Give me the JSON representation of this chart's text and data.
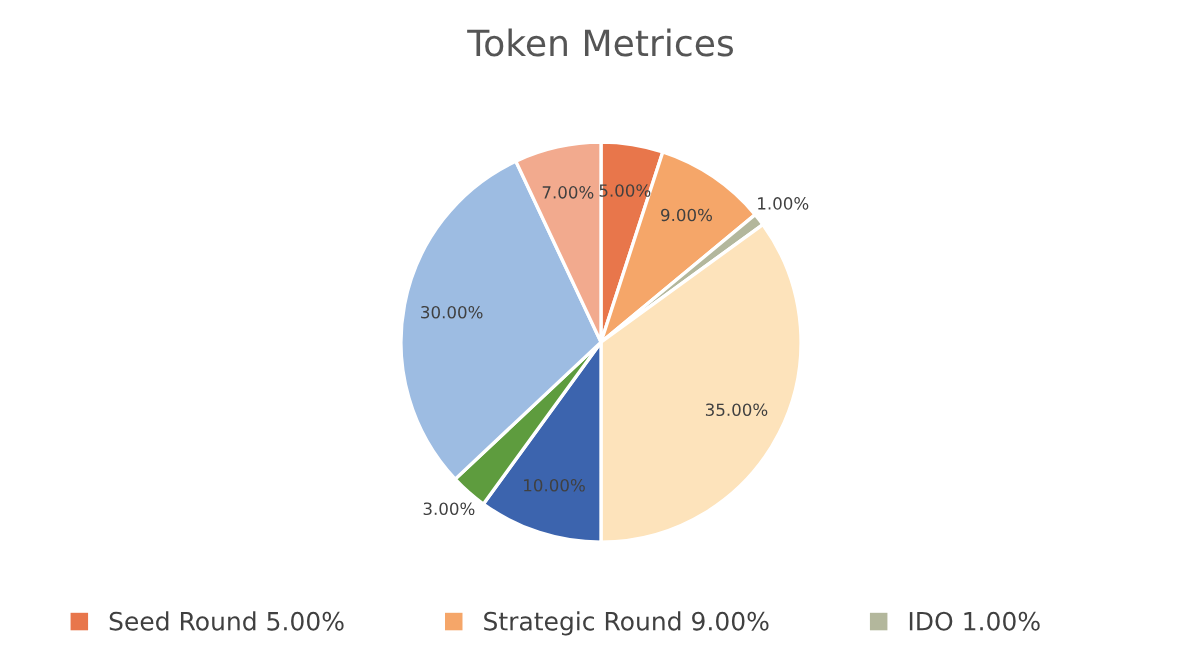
{
  "chart_data": {
    "type": "pie",
    "title": "Token Metrices",
    "categories": [
      "Seed Round 5.00%",
      "Strategic Round 9.00%",
      "IDO 1.00%",
      null,
      null,
      null,
      null,
      null
    ],
    "values": [
      5,
      9,
      1,
      35,
      10,
      3,
      30,
      7
    ],
    "value_labels": [
      "5.00%",
      "9.00%",
      "1.00%",
      "35.00%",
      "10.00%",
      "3.00%",
      "30.00%",
      "7.00%"
    ],
    "colors": [
      "#e8764b",
      "#f5a669",
      "#b3b79c",
      "#fde3bb",
      "#3c64ae",
      "#5e9c3e",
      "#9dbce2",
      "#f2aa8e"
    ],
    "legend": "bottom"
  }
}
